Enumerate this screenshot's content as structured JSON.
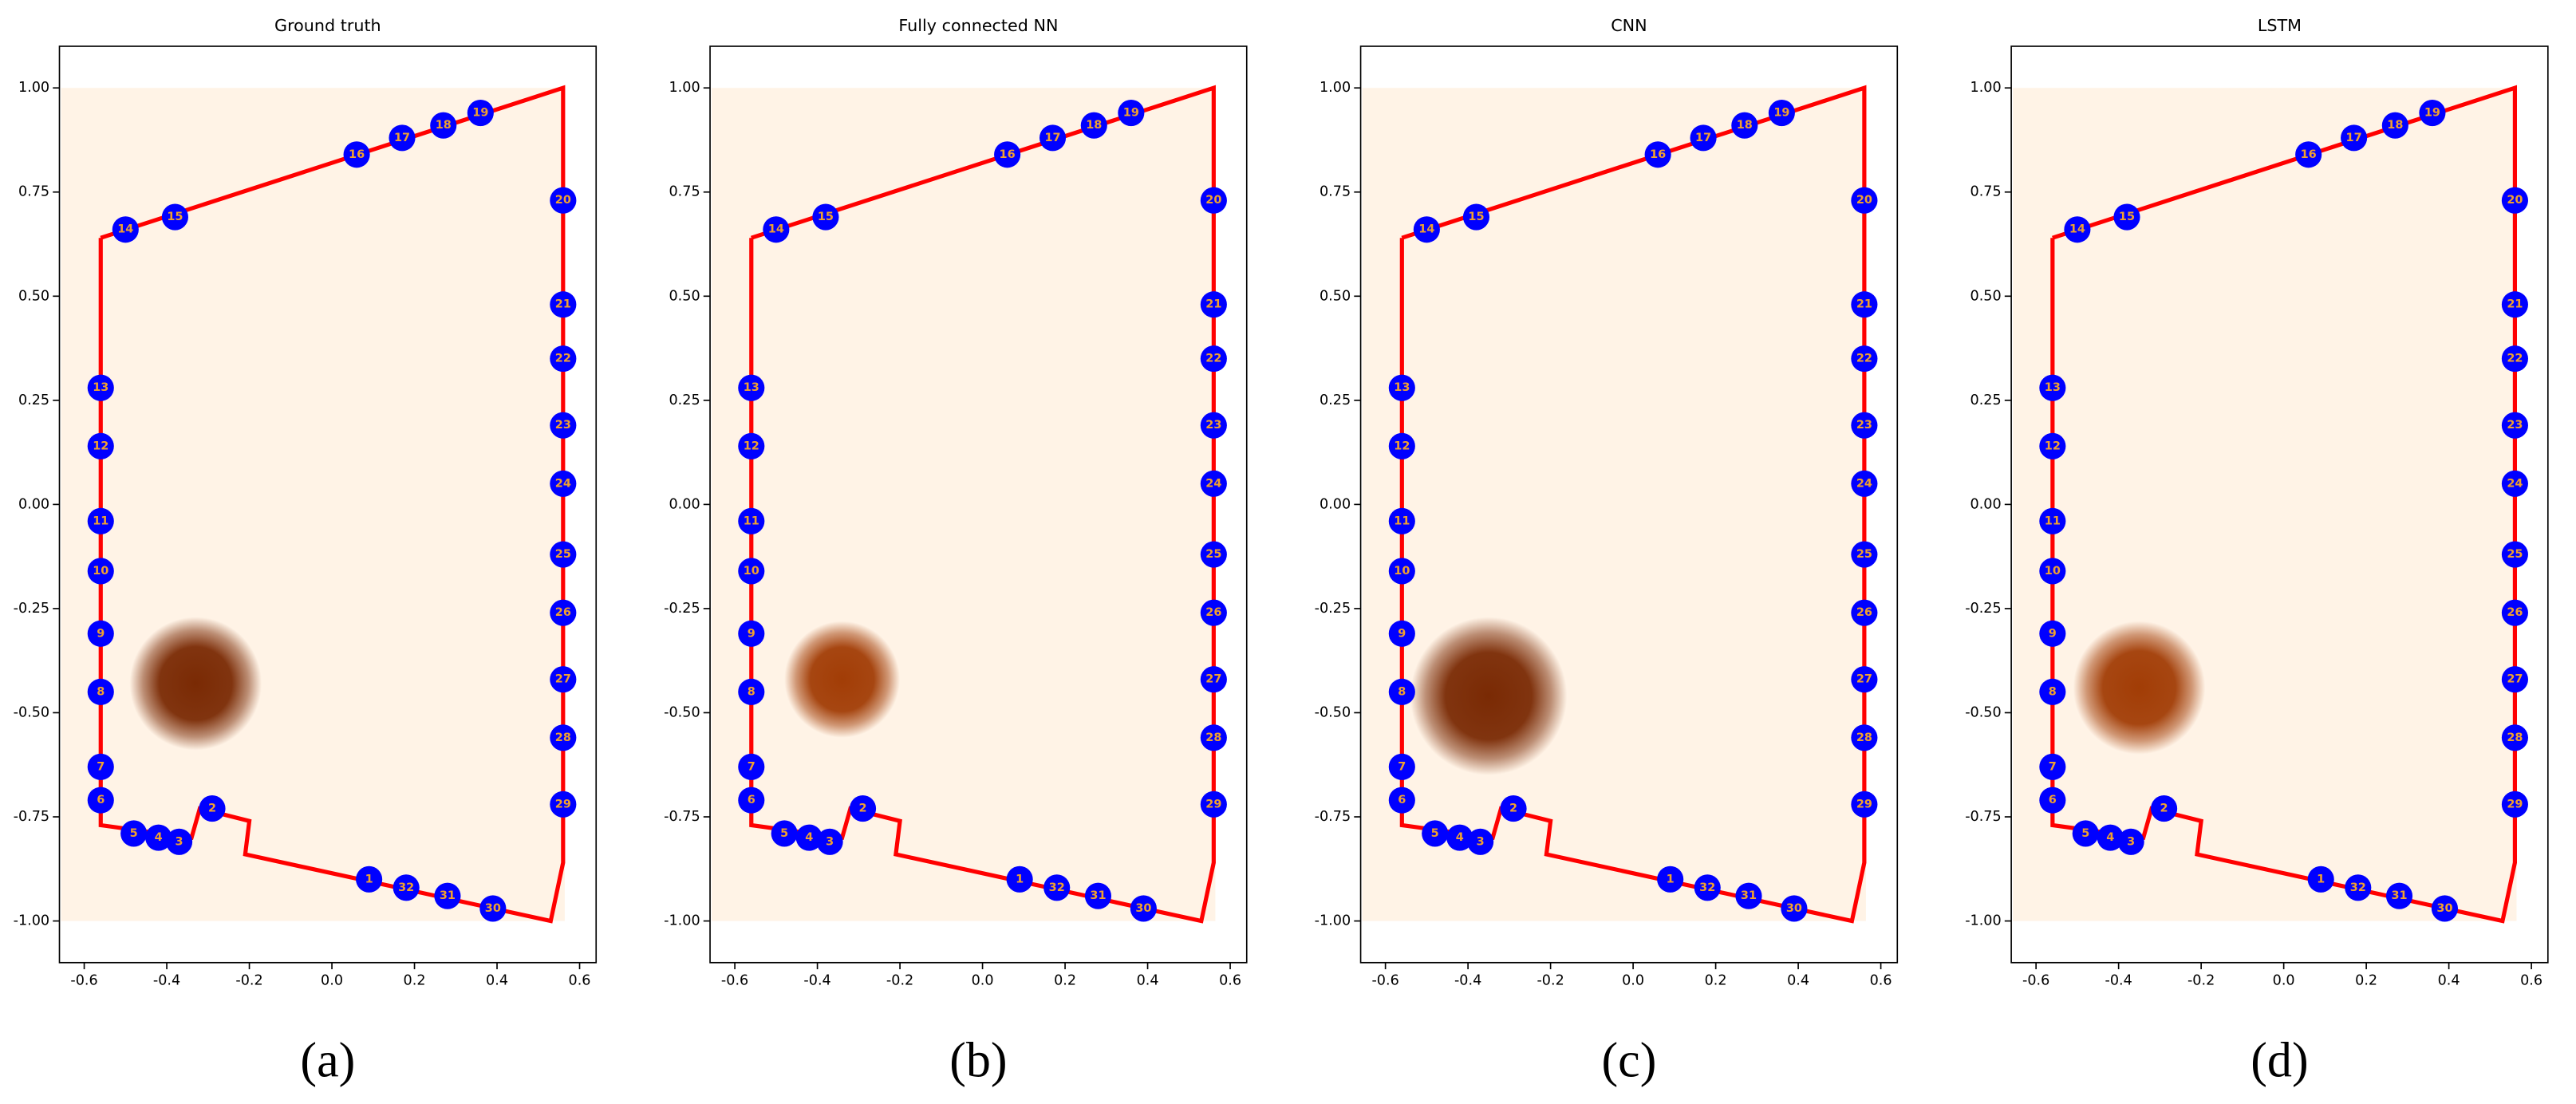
{
  "chart_data": [
    {
      "type": "scatter",
      "title": "Ground truth",
      "caption": "(a)",
      "xlim": [
        -0.66,
        0.64
      ],
      "ylim": [
        -1.1,
        1.1
      ],
      "xticks": [
        -0.6,
        -0.4,
        -0.2,
        {
          "value": 0,
          "label": "0.0"
        },
        0.2,
        0.4,
        0.6
      ],
      "yticks": [
        {
          "value": -1,
          "label": "-1.00"
        },
        {
          "value": -0.75,
          "label": "-0.75"
        },
        {
          "value": -0.5,
          "label": "-0.50"
        },
        {
          "value": -0.25,
          "label": "-0.25"
        },
        {
          "value": 0,
          "label": "0.00"
        },
        {
          "value": 0.25,
          "label": "0.25"
        },
        {
          "value": 0.5,
          "label": "0.50"
        },
        {
          "value": 0.75,
          "label": "0.75"
        },
        {
          "value": 1,
          "label": "1.00"
        }
      ],
      "boundary": {
        "color": "#ff0000",
        "x": [
          -0.56,
          0.56,
          0.56,
          0.53,
          -0.21,
          -0.2,
          -0.32,
          -0.34,
          -0.56,
          -0.56
        ],
        "y": [
          0.64,
          1.0,
          -0.86,
          -1.0,
          -0.84,
          -0.76,
          -0.73,
          -0.8,
          -0.77,
          0.64
        ]
      },
      "blob": {
        "x": -0.33,
        "y": -0.43,
        "radius": 0.16,
        "color": "#7a2a04"
      },
      "points": {
        "color": "#0000ff",
        "label_color": "#f0a030",
        "labels": [
          "1",
          "2",
          "3",
          "4",
          "5",
          "6",
          "7",
          "8",
          "9",
          "10",
          "11",
          "12",
          "13",
          "14",
          "15",
          "16",
          "17",
          "18",
          "19",
          "20",
          "21",
          "22",
          "23",
          "24",
          "25",
          "26",
          "27",
          "28",
          "29",
          "30",
          "31",
          "32"
        ],
        "x": [
          0.09,
          -0.29,
          -0.37,
          -0.42,
          -0.48,
          -0.56,
          -0.56,
          -0.56,
          -0.56,
          -0.56,
          -0.56,
          -0.56,
          -0.56,
          -0.5,
          -0.38,
          0.06,
          0.17,
          0.27,
          0.36,
          0.56,
          0.56,
          0.56,
          0.56,
          0.56,
          0.56,
          0.56,
          0.56,
          0.56,
          0.56,
          0.39,
          0.28,
          0.18
        ],
        "y": [
          -0.9,
          -0.73,
          -0.81,
          -0.8,
          -0.79,
          -0.71,
          -0.63,
          -0.45,
          -0.31,
          -0.16,
          -0.04,
          0.14,
          0.28,
          0.66,
          0.69,
          0.84,
          0.88,
          0.91,
          0.94,
          0.73,
          0.48,
          0.35,
          0.19,
          0.05,
          -0.12,
          -0.26,
          -0.42,
          -0.56,
          -0.72,
          -0.97,
          -0.94,
          -0.92
        ]
      }
    },
    {
      "type": "scatter",
      "title": "Fully connected NN",
      "caption": "(b)",
      "xlim": [
        -0.66,
        0.64
      ],
      "ylim": [
        -1.1,
        1.1
      ],
      "xticks": [
        -0.6,
        -0.4,
        -0.2,
        {
          "value": 0,
          "label": "0.0"
        },
        0.2,
        0.4,
        0.6
      ],
      "yticks": [
        {
          "value": -1,
          "label": "-1.00"
        },
        {
          "value": -0.75,
          "label": "-0.75"
        },
        {
          "value": -0.5,
          "label": "-0.50"
        },
        {
          "value": -0.25,
          "label": "-0.25"
        },
        {
          "value": 0,
          "label": "0.00"
        },
        {
          "value": 0.25,
          "label": "0.25"
        },
        {
          "value": 0.5,
          "label": "0.50"
        },
        {
          "value": 0.75,
          "label": "0.75"
        },
        {
          "value": 1,
          "label": "1.00"
        }
      ],
      "boundary": {
        "color": "#ff0000",
        "x": [
          -0.56,
          0.56,
          0.56,
          0.53,
          -0.21,
          -0.2,
          -0.32,
          -0.34,
          -0.56,
          -0.56
        ],
        "y": [
          0.64,
          1.0,
          -0.86,
          -1.0,
          -0.84,
          -0.76,
          -0.73,
          -0.8,
          -0.77,
          0.64
        ]
      },
      "blob": {
        "x": -0.34,
        "y": -0.42,
        "radius": 0.14,
        "color": "#a23d06"
      },
      "points": {
        "color": "#0000ff",
        "label_color": "#f0a030",
        "labels": [
          "1",
          "2",
          "3",
          "4",
          "5",
          "6",
          "7",
          "8",
          "9",
          "10",
          "11",
          "12",
          "13",
          "14",
          "15",
          "16",
          "17",
          "18",
          "19",
          "20",
          "21",
          "22",
          "23",
          "24",
          "25",
          "26",
          "27",
          "28",
          "29",
          "30",
          "31",
          "32"
        ],
        "x": [
          0.09,
          -0.29,
          -0.37,
          -0.42,
          -0.48,
          -0.56,
          -0.56,
          -0.56,
          -0.56,
          -0.56,
          -0.56,
          -0.56,
          -0.56,
          -0.5,
          -0.38,
          0.06,
          0.17,
          0.27,
          0.36,
          0.56,
          0.56,
          0.56,
          0.56,
          0.56,
          0.56,
          0.56,
          0.56,
          0.56,
          0.56,
          0.39,
          0.28,
          0.18
        ],
        "y": [
          -0.9,
          -0.73,
          -0.81,
          -0.8,
          -0.79,
          -0.71,
          -0.63,
          -0.45,
          -0.31,
          -0.16,
          -0.04,
          0.14,
          0.28,
          0.66,
          0.69,
          0.84,
          0.88,
          0.91,
          0.94,
          0.73,
          0.48,
          0.35,
          0.19,
          0.05,
          -0.12,
          -0.26,
          -0.42,
          -0.56,
          -0.72,
          -0.97,
          -0.94,
          -0.92
        ]
      }
    },
    {
      "type": "scatter",
      "title": "CNN",
      "caption": "(c)",
      "xlim": [
        -0.66,
        0.64
      ],
      "ylim": [
        -1.1,
        1.1
      ],
      "xticks": [
        -0.6,
        -0.4,
        -0.2,
        {
          "value": 0,
          "label": "0.0"
        },
        0.2,
        0.4,
        0.6
      ],
      "yticks": [
        {
          "value": -1,
          "label": "-1.00"
        },
        {
          "value": -0.75,
          "label": "-0.75"
        },
        {
          "value": -0.5,
          "label": "-0.50"
        },
        {
          "value": -0.25,
          "label": "-0.25"
        },
        {
          "value": 0,
          "label": "0.00"
        },
        {
          "value": 0.25,
          "label": "0.25"
        },
        {
          "value": 0.5,
          "label": "0.50"
        },
        {
          "value": 0.75,
          "label": "0.75"
        },
        {
          "value": 1,
          "label": "1.00"
        }
      ],
      "boundary": {
        "color": "#ff0000",
        "x": [
          -0.56,
          0.56,
          0.56,
          0.53,
          -0.21,
          -0.2,
          -0.32,
          -0.34,
          -0.56,
          -0.56
        ],
        "y": [
          0.64,
          1.0,
          -0.86,
          -1.0,
          -0.84,
          -0.76,
          -0.73,
          -0.8,
          -0.77,
          0.64
        ]
      },
      "blob": {
        "x": -0.35,
        "y": -0.46,
        "radius": 0.19,
        "color": "#7a2a04"
      },
      "points": {
        "color": "#0000ff",
        "label_color": "#f0a030",
        "labels": [
          "1",
          "2",
          "3",
          "4",
          "5",
          "6",
          "7",
          "8",
          "9",
          "10",
          "11",
          "12",
          "13",
          "14",
          "15",
          "16",
          "17",
          "18",
          "19",
          "20",
          "21",
          "22",
          "23",
          "24",
          "25",
          "26",
          "27",
          "28",
          "29",
          "30",
          "31",
          "32"
        ],
        "x": [
          0.09,
          -0.29,
          -0.37,
          -0.42,
          -0.48,
          -0.56,
          -0.56,
          -0.56,
          -0.56,
          -0.56,
          -0.56,
          -0.56,
          -0.56,
          -0.5,
          -0.38,
          0.06,
          0.17,
          0.27,
          0.36,
          0.56,
          0.56,
          0.56,
          0.56,
          0.56,
          0.56,
          0.56,
          0.56,
          0.56,
          0.56,
          0.39,
          0.28,
          0.18
        ],
        "y": [
          -0.9,
          -0.73,
          -0.81,
          -0.8,
          -0.79,
          -0.71,
          -0.63,
          -0.45,
          -0.31,
          -0.16,
          -0.04,
          0.14,
          0.28,
          0.66,
          0.69,
          0.84,
          0.88,
          0.91,
          0.94,
          0.73,
          0.48,
          0.35,
          0.19,
          0.05,
          -0.12,
          -0.26,
          -0.42,
          -0.56,
          -0.72,
          -0.97,
          -0.94,
          -0.92
        ]
      }
    },
    {
      "type": "scatter",
      "title": "LSTM",
      "caption": "(d)",
      "xlim": [
        -0.66,
        0.64
      ],
      "ylim": [
        -1.1,
        1.1
      ],
      "xticks": [
        -0.6,
        -0.4,
        -0.2,
        {
          "value": 0,
          "label": "0.0"
        },
        0.2,
        0.4,
        0.6
      ],
      "yticks": [
        {
          "value": -1,
          "label": "-1.00"
        },
        {
          "value": -0.75,
          "label": "-0.75"
        },
        {
          "value": -0.5,
          "label": "-0.50"
        },
        {
          "value": -0.25,
          "label": "-0.25"
        },
        {
          "value": 0,
          "label": "0.00"
        },
        {
          "value": 0.25,
          "label": "0.25"
        },
        {
          "value": 0.5,
          "label": "0.50"
        },
        {
          "value": 0.75,
          "label": "0.75"
        },
        {
          "value": 1,
          "label": "1.00"
        }
      ],
      "boundary": {
        "color": "#ff0000",
        "x": [
          -0.56,
          0.56,
          0.56,
          0.53,
          -0.21,
          -0.2,
          -0.32,
          -0.34,
          -0.56,
          -0.56
        ],
        "y": [
          0.64,
          1.0,
          -0.86,
          -1.0,
          -0.84,
          -0.76,
          -0.73,
          -0.8,
          -0.77,
          0.64
        ]
      },
      "blob": {
        "x": -0.35,
        "y": -0.44,
        "radius": 0.16,
        "color": "#a23d06"
      },
      "points": {
        "color": "#0000ff",
        "label_color": "#f0a030",
        "labels": [
          "1",
          "2",
          "3",
          "4",
          "5",
          "6",
          "7",
          "8",
          "9",
          "10",
          "11",
          "12",
          "13",
          "14",
          "15",
          "16",
          "17",
          "18",
          "19",
          "20",
          "21",
          "22",
          "23",
          "24",
          "25",
          "26",
          "27",
          "28",
          "29",
          "30",
          "31",
          "32"
        ],
        "x": [
          0.09,
          -0.29,
          -0.37,
          -0.42,
          -0.48,
          -0.56,
          -0.56,
          -0.56,
          -0.56,
          -0.56,
          -0.56,
          -0.56,
          -0.56,
          -0.5,
          -0.38,
          0.06,
          0.17,
          0.27,
          0.36,
          0.56,
          0.56,
          0.56,
          0.56,
          0.56,
          0.56,
          0.56,
          0.56,
          0.56,
          0.56,
          0.39,
          0.28,
          0.18
        ],
        "y": [
          -0.9,
          -0.73,
          -0.81,
          -0.8,
          -0.79,
          -0.71,
          -0.63,
          -0.45,
          -0.31,
          -0.16,
          -0.04,
          0.14,
          0.28,
          0.66,
          0.69,
          0.84,
          0.88,
          0.91,
          0.94,
          0.73,
          0.48,
          0.35,
          0.19,
          0.05,
          -0.12,
          -0.26,
          -0.42,
          -0.56,
          -0.72,
          -0.97,
          -0.94,
          -0.92
        ]
      }
    }
  ]
}
